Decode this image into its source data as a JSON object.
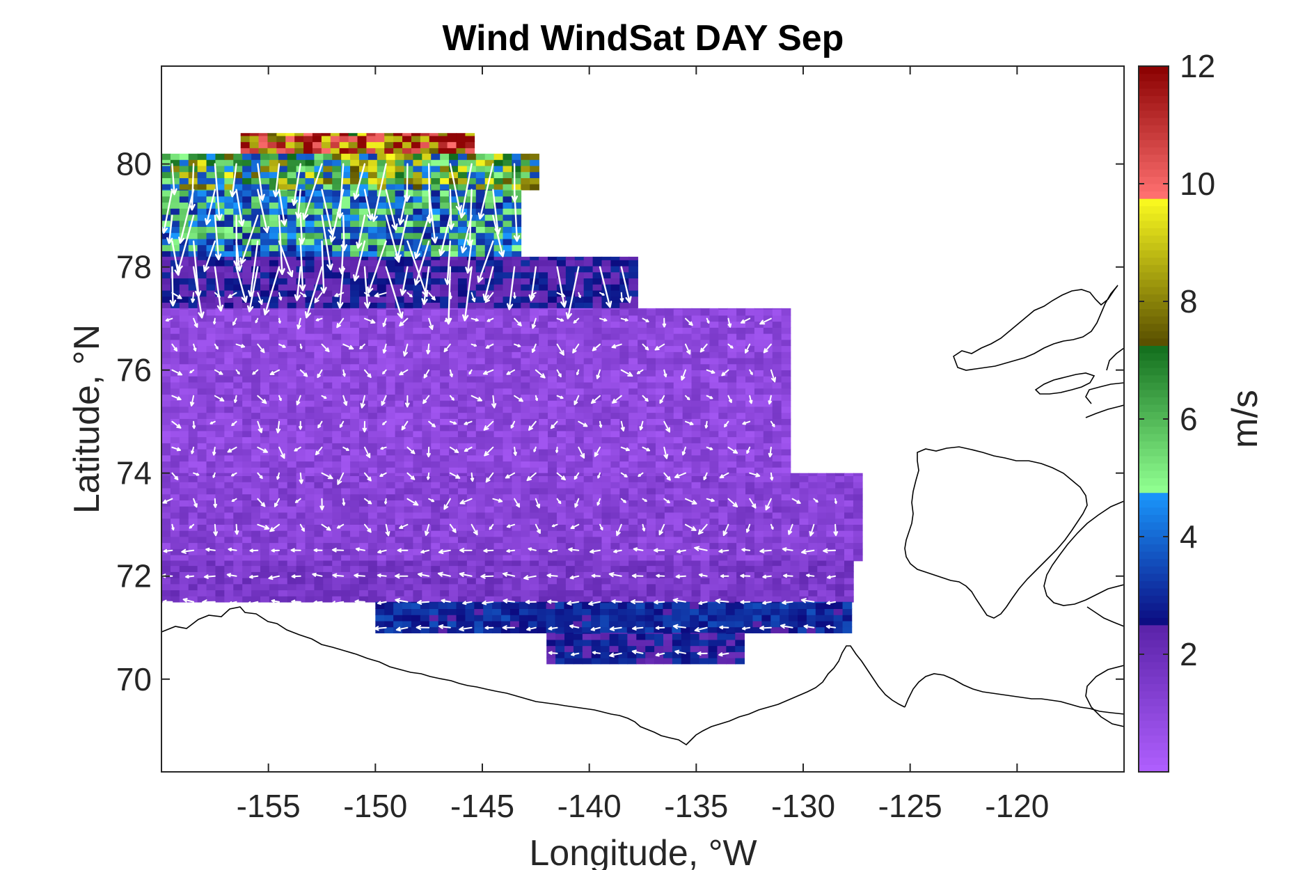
{
  "chart_data": {
    "type": "heatmap",
    "title": "Wind WindSat DAY Sep",
    "xlabel": "Longitude, °W",
    "ylabel": "Latitude, °N",
    "xlim": [
      -160,
      -115
    ],
    "ylim": [
      68.2,
      81.9
    ],
    "x_ticks": [
      -155,
      -150,
      -145,
      -140,
      -135,
      -130,
      -125,
      -120
    ],
    "x_tick_labels": [
      "-155",
      "-150",
      "-145",
      "-140",
      "-135",
      "-130",
      "-125",
      "-120"
    ],
    "y_ticks": [
      70,
      72,
      74,
      76,
      78,
      80
    ],
    "y_tick_labels": [
      "70",
      "72",
      "74",
      "76",
      "78",
      "80"
    ],
    "colorbar": {
      "label": "m/s",
      "range": [
        0,
        12
      ],
      "ticks": [
        2,
        4,
        6,
        8,
        10,
        12
      ],
      "tick_labels": [
        "2",
        "4",
        "6",
        "8",
        "10",
        "12"
      ],
      "bands": [
        {
          "from": 0,
          "to": 2.5,
          "low": "#b060ff",
          "high": "#5a22a8"
        },
        {
          "from": 2.5,
          "to": 4.8,
          "low": "#0c0a80",
          "high": "#1a9bff"
        },
        {
          "from": 4.8,
          "to": 7.3,
          "low": "#90ff90",
          "high": "#0f6a1a"
        },
        {
          "from": 7.3,
          "to": 9.8,
          "low": "#5a5000",
          "high": "#ffff20"
        },
        {
          "from": 9.8,
          "to": 12,
          "low": "#ff7070",
          "high": "#8a0000"
        }
      ]
    },
    "grid": false,
    "field_cells": [
      {
        "lat_range": [
          80.2,
          80.6
        ],
        "lon_range": [
          -156.3,
          -145.5
        ],
        "speed": 10.5
      },
      {
        "lat_range": [
          79.5,
          80.2
        ],
        "lon_range": [
          -160,
          -142.5
        ],
        "speed": 6.5
      },
      {
        "lat_range": [
          78.2,
          79.5
        ],
        "lon_range": [
          -160,
          -143.5
        ],
        "speed": 4.5
      },
      {
        "lat_range": [
          77.2,
          78.2
        ],
        "lon_range": [
          -160,
          -138
        ],
        "speed": 2.5
      },
      {
        "lat_range": [
          74,
          77.2
        ],
        "lon_range": [
          -160,
          -131
        ],
        "speed": 1.0
      },
      {
        "lat_range": [
          72.3,
          74
        ],
        "lon_range": [
          -160,
          -127.5
        ],
        "speed": 1.2
      },
      {
        "lat_range": [
          71.5,
          72.3
        ],
        "lon_range": [
          -160,
          -127.8
        ],
        "speed": 1.6
      },
      {
        "lat_range": [
          70.9,
          71.5
        ],
        "lon_range": [
          -150,
          -127.8
        ],
        "speed": 3.0
      },
      {
        "lat_range": [
          70.3,
          70.9
        ],
        "lon_range": [
          -142,
          -133
        ],
        "speed": 2.6
      }
    ],
    "wind_vectors": "white arrows over the gridded field; strongest and most southward near 78-80°N, -155 to -145°W; weak westward flow near 72°N"
  }
}
